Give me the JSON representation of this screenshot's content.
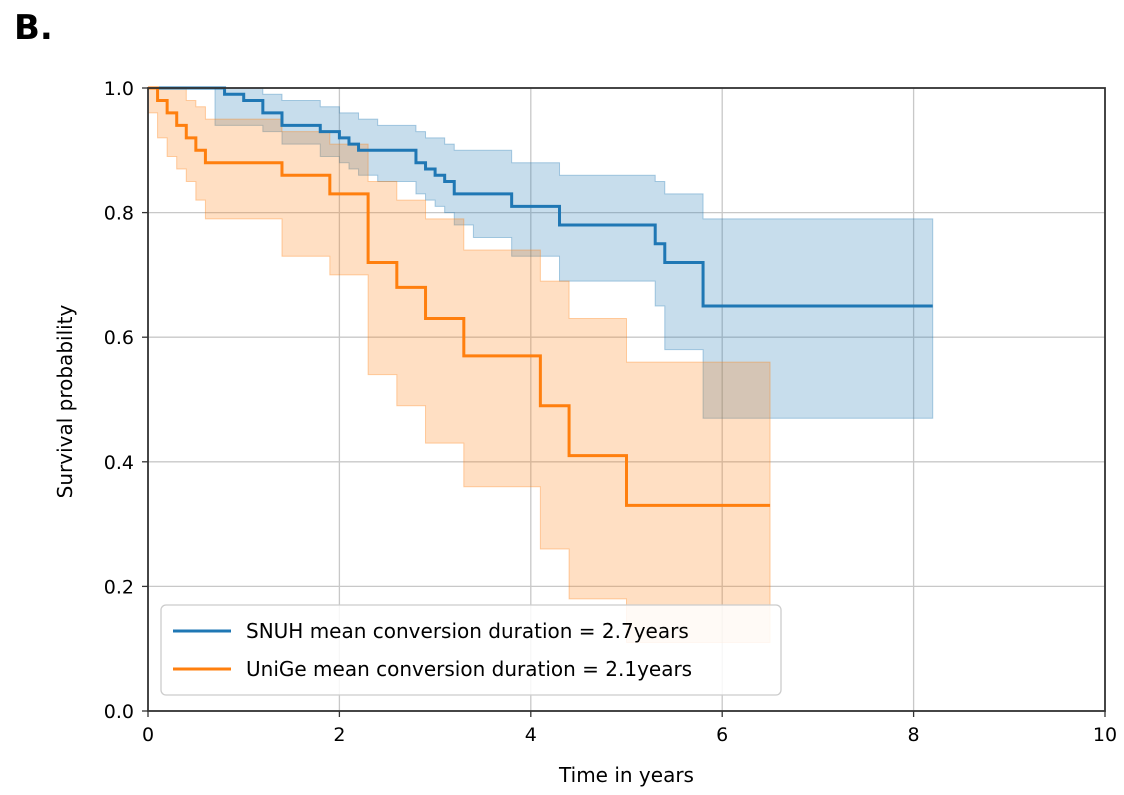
{
  "panel_label": "B.",
  "chart_data": {
    "type": "line",
    "subtype": "step",
    "title": "",
    "xlabel": "Time in years",
    "ylabel": "Survival probability",
    "xlim": [
      0,
      10
    ],
    "ylim": [
      0,
      1
    ],
    "xticks": [
      0,
      2,
      4,
      6,
      8,
      10
    ],
    "xtick_labels": [
      "0",
      "2",
      "4",
      "6",
      "8",
      "10"
    ],
    "yticks": [
      0.0,
      0.2,
      0.4,
      0.6,
      0.8,
      1.0
    ],
    "ytick_labels": [
      "0.0",
      "0.2",
      "0.4",
      "0.6",
      "0.8",
      "1.0"
    ],
    "grid": true,
    "legend_position": "lower-left",
    "series": [
      {
        "name": "SNUH mean conversion duration = 2.7years",
        "color": "#1f77b4",
        "x": [
          0,
          0.7,
          0.8,
          1.0,
          1.2,
          1.4,
          1.8,
          2.0,
          2.1,
          2.2,
          2.4,
          2.8,
          2.9,
          3.0,
          3.1,
          3.2,
          3.4,
          3.8,
          4.3,
          5.3,
          5.4,
          5.8,
          8.2
        ],
        "y": [
          1.0,
          1.0,
          0.99,
          0.98,
          0.96,
          0.94,
          0.93,
          0.92,
          0.91,
          0.9,
          0.9,
          0.88,
          0.87,
          0.86,
          0.85,
          0.83,
          0.83,
          0.81,
          0.78,
          0.75,
          0.72,
          0.65,
          0.65
        ],
        "ci_lower": [
          1.0,
          0.94,
          0.94,
          0.94,
          0.93,
          0.91,
          0.89,
          0.88,
          0.87,
          0.86,
          0.85,
          0.83,
          0.82,
          0.81,
          0.8,
          0.78,
          0.76,
          0.73,
          0.69,
          0.65,
          0.58,
          0.47,
          0.47
        ],
        "ci_upper": [
          1.0,
          1.0,
          1.0,
          1.0,
          0.99,
          0.98,
          0.97,
          0.96,
          0.96,
          0.95,
          0.94,
          0.93,
          0.92,
          0.92,
          0.91,
          0.9,
          0.9,
          0.88,
          0.86,
          0.85,
          0.83,
          0.79,
          0.79
        ]
      },
      {
        "name": "UniGe mean conversion duration = 2.1years",
        "color": "#ff7f0e",
        "x": [
          0,
          0.1,
          0.2,
          0.3,
          0.4,
          0.5,
          0.6,
          1.4,
          1.9,
          2.3,
          2.6,
          2.9,
          3.3,
          4.1,
          4.4,
          5.0,
          6.5
        ],
        "y": [
          1.0,
          0.98,
          0.96,
          0.94,
          0.92,
          0.9,
          0.88,
          0.86,
          0.83,
          0.72,
          0.68,
          0.63,
          0.57,
          0.49,
          0.41,
          0.33,
          0.33
        ],
        "ci_lower": [
          0.96,
          0.92,
          0.89,
          0.87,
          0.85,
          0.82,
          0.79,
          0.73,
          0.7,
          0.54,
          0.49,
          0.43,
          0.36,
          0.26,
          0.18,
          0.11,
          0.11
        ],
        "ci_upper": [
          1.0,
          1.0,
          1.0,
          1.0,
          0.98,
          0.97,
          0.95,
          0.93,
          0.91,
          0.85,
          0.82,
          0.79,
          0.74,
          0.69,
          0.63,
          0.56,
          0.56
        ]
      }
    ]
  }
}
